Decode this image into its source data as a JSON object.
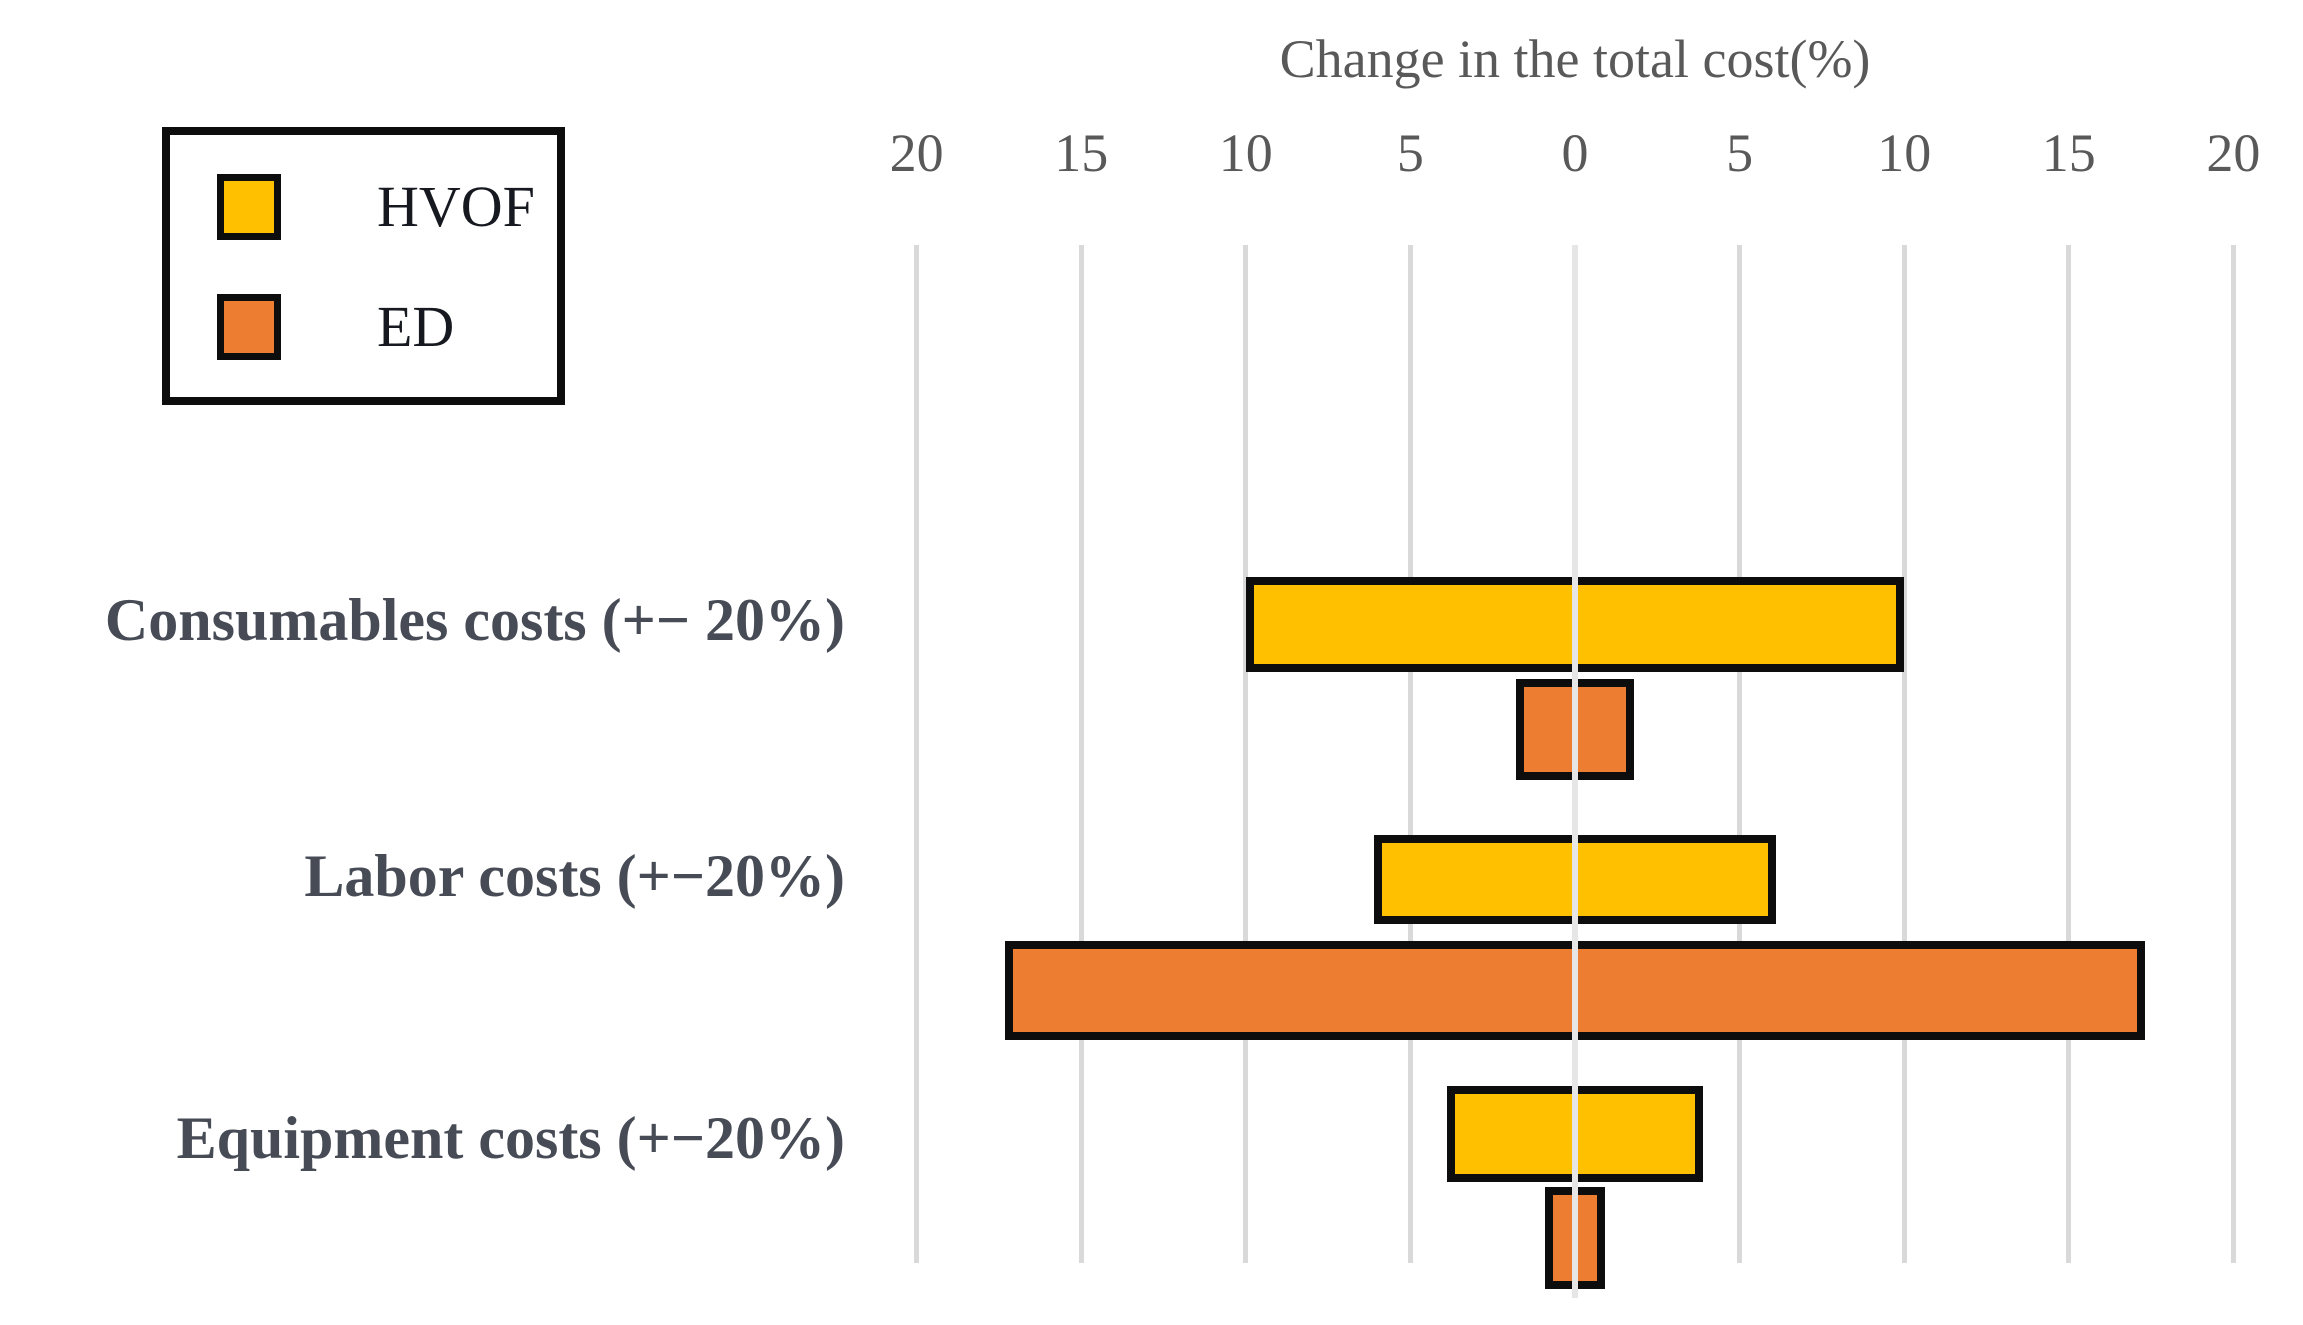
{
  "chart_title": "Change in the total cost(%)",
  "legend": {
    "items": [
      {
        "label": "HVOF",
        "color": "#FFC000"
      },
      {
        "label": "ED",
        "color": "#ED7D31"
      }
    ]
  },
  "chart_data": {
    "type": "bar",
    "subtype": "horizontal-tornado",
    "title": "Change in the total cost(%)",
    "xlabel": "Change in the total cost(%)",
    "xlim": [
      -20,
      20
    ],
    "grid": true,
    "legend_position": "top-left",
    "x_ticks": [
      {
        "value": -20,
        "label": "20"
      },
      {
        "value": -15,
        "label": "15"
      },
      {
        "value": -10,
        "label": "10"
      },
      {
        "value": -5,
        "label": "5"
      },
      {
        "value": 0,
        "label": "0"
      },
      {
        "value": 5,
        "label": "5"
      },
      {
        "value": 10,
        "label": "10"
      },
      {
        "value": 15,
        "label": "15"
      },
      {
        "value": 20,
        "label": "20"
      }
    ],
    "categories": [
      "Consumables costs (+− 20%)",
      "Labor costs (+−20%)",
      "Equipment costs (+−20%)"
    ],
    "series": [
      {
        "name": "HVOF",
        "color": "#FFC000",
        "ranges_pct": [
          [
            -10,
            10
          ],
          [
            -6.1,
            6.1
          ],
          [
            -3.9,
            3.9
          ]
        ]
      },
      {
        "name": "ED",
        "color": "#ED7D31",
        "ranges_pct": [
          [
            -1.8,
            1.8
          ],
          [
            -17.3,
            17.3
          ],
          [
            -0.9,
            0.9
          ]
        ]
      }
    ]
  },
  "colors": {
    "hvof": "#FFC000",
    "ed": "#ED7D31",
    "gridline": "#D9D9D9",
    "zero_line": "#E6E6E6",
    "bar_border": "#0D0D0D",
    "axis_text": "#595959",
    "category_text": "#474B55",
    "legend_text": "#16191F"
  }
}
